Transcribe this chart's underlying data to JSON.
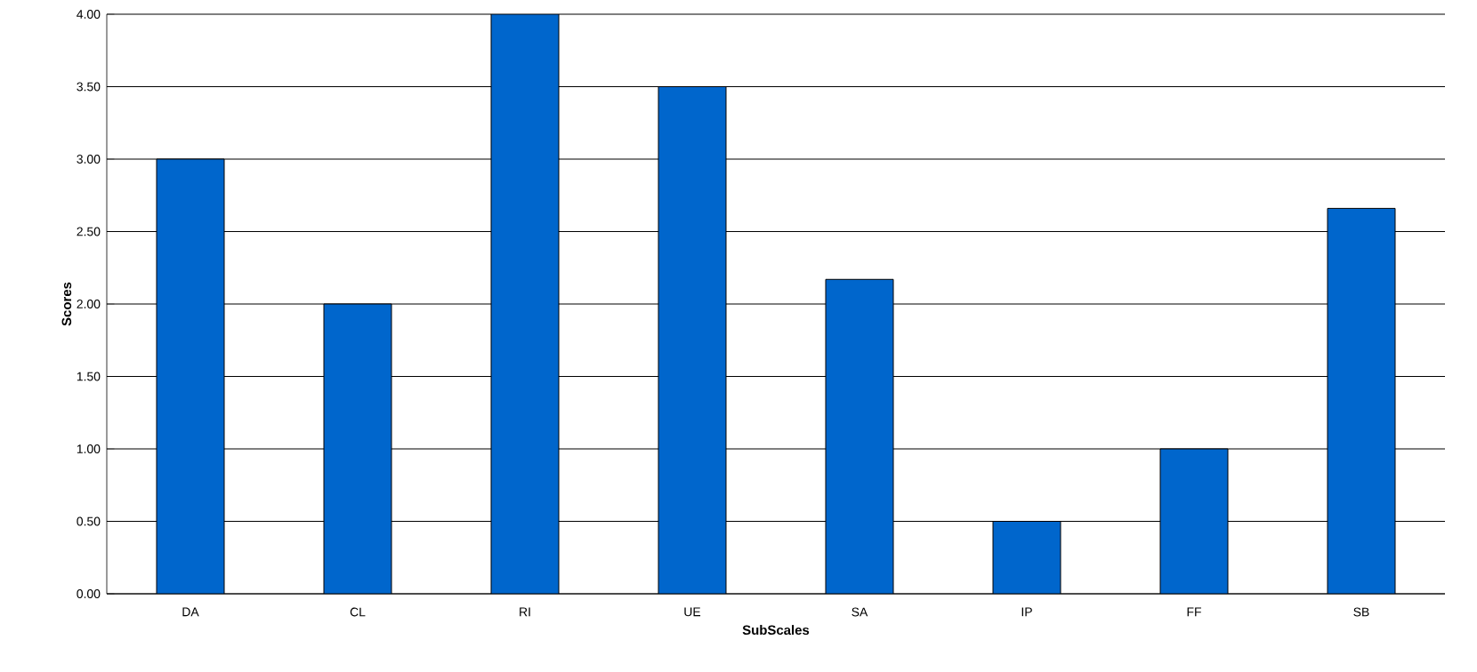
{
  "chart_data": {
    "type": "bar",
    "xlabel": "SubScales",
    "ylabel": "Scores",
    "categories": [
      "DA",
      "CL",
      "RI",
      "UE",
      "SA",
      "IP",
      "FF",
      "SB"
    ],
    "values": [
      3.0,
      2.0,
      4.0,
      3.5,
      2.17,
      0.5,
      1.0,
      2.66
    ],
    "color": "#0066cc",
    "ylim": [
      0,
      4
    ],
    "yticks": [
      {
        "value": 0,
        "label": "0.00"
      },
      {
        "value": 0.5,
        "label": "0.50"
      },
      {
        "value": 1,
        "label": "1.00"
      },
      {
        "value": 1.5,
        "label": "1.50"
      },
      {
        "value": 2,
        "label": "2.00"
      },
      {
        "value": 2.5,
        "label": "2.50"
      },
      {
        "value": 3,
        "label": "3.00"
      },
      {
        "value": 3.5,
        "label": "3.50"
      },
      {
        "value": 4,
        "label": "4.00"
      }
    ],
    "grid": "y"
  }
}
